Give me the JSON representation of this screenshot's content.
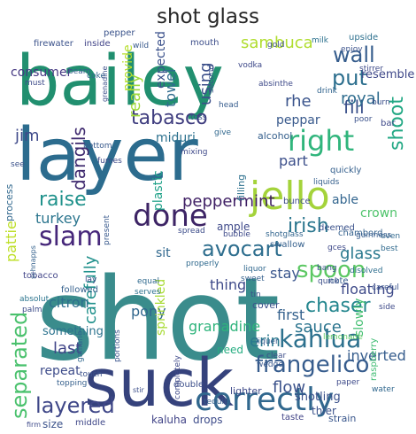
{
  "title": "shot glass",
  "words": [
    {
      "text": "shot",
      "color": "#3a8c8c"
    },
    {
      "text": "bailey",
      "color": "#218f6f"
    },
    {
      "text": "layer",
      "color": "#2c6c8e"
    },
    {
      "text": "suck",
      "color": "#35427c"
    },
    {
      "text": "jello",
      "color": "#a4d33b"
    },
    {
      "text": "done",
      "color": "#3d2465"
    },
    {
      "text": "correctly",
      "color": "#31688e"
    },
    {
      "text": "layered",
      "color": "#3f4788"
    },
    {
      "text": "frangelico",
      "color": "#365c8d"
    },
    {
      "text": "kahlua",
      "color": "#2d718e"
    },
    {
      "text": "right",
      "color": "#30b57c"
    },
    {
      "text": "tabasco",
      "color": "#3f3d7f"
    },
    {
      "text": "slam",
      "color": "#46277a"
    },
    {
      "text": "avocart",
      "color": "#2e6e8e"
    },
    {
      "text": "wall",
      "color": "#365d8d"
    },
    {
      "text": "put",
      "color": "#2d6f8e"
    },
    {
      "text": "separated",
      "color": "#4ac16d"
    },
    {
      "text": "spoon",
      "color": "#5cc863"
    },
    {
      "text": "irish",
      "color": "#2a768e"
    },
    {
      "text": "raise",
      "color": "#20928c"
    },
    {
      "text": "peppermint",
      "color": "#3f1f64"
    },
    {
      "text": "fill",
      "color": "#3b518b"
    },
    {
      "text": "chaser",
      "color": "#24868e"
    },
    {
      "text": "sauce",
      "color": "#2b748e"
    },
    {
      "text": "using",
      "color": "#3c4f8a"
    },
    {
      "text": "sambuca",
      "color": "#b0dd2f"
    },
    {
      "text": "shoot",
      "color": "#22a884"
    },
    {
      "text": "royal",
      "color": "#2e6c8e"
    },
    {
      "text": "rhe",
      "color": "#3a548c"
    },
    {
      "text": "turkey",
      "color": "#2b758e"
    },
    {
      "text": "pattie",
      "color": "#bddf26"
    },
    {
      "text": "really",
      "color": "#9fda3a"
    },
    {
      "text": "dangils",
      "color": "#3f2a6f"
    },
    {
      "text": "jim",
      "color": "#3e4989"
    },
    {
      "text": "consumer",
      "color": "#453882"
    },
    {
      "text": "towel",
      "color": "#2f6b8e"
    },
    {
      "text": "expected",
      "color": "#3b518b"
    },
    {
      "text": "provide",
      "color": "#b5de2b"
    },
    {
      "text": "granadine",
      "color": "#2fb47c"
    },
    {
      "text": "carefully",
      "color": "#21918c"
    },
    {
      "text": "erin",
      "color": "#2a788e"
    },
    {
      "text": "inverted",
      "color": "#365d8d"
    },
    {
      "text": "floating",
      "color": "#3e4a89"
    },
    {
      "text": "glass",
      "color": "#2a798e"
    },
    {
      "text": "flow",
      "color": "#3b528b"
    },
    {
      "text": "last",
      "color": "#404588"
    },
    {
      "text": "first",
      "color": "#34618d"
    },
    {
      "text": "repeat",
      "color": "#3e4c8a"
    },
    {
      "text": "stay",
      "color": "#39558c"
    },
    {
      "text": "thing",
      "color": "#3e4a89"
    },
    {
      "text": "citron",
      "color": "#2e6f8e"
    },
    {
      "text": "pony",
      "color": "#31678e"
    },
    {
      "text": "sprinkled",
      "color": "#a8db34"
    },
    {
      "text": "part",
      "color": "#3c4f8a"
    },
    {
      "text": "crown",
      "color": "#4ec36b"
    },
    {
      "text": "peppar",
      "color": "#38598c"
    },
    {
      "text": "miduri",
      "color": "#2c718e"
    },
    {
      "text": "plastic",
      "color": "#1fa188"
    },
    {
      "text": "sit",
      "color": "#31688e"
    },
    {
      "text": "able",
      "color": "#32658e"
    },
    {
      "text": "something",
      "color": "#2c738e"
    },
    {
      "text": "shotling",
      "color": "#3b518b"
    },
    {
      "text": "slowly",
      "color": "#43bf71"
    },
    {
      "text": "resemble",
      "color": "#3f4889"
    },
    {
      "text": "upside",
      "color": "#2d708e"
    },
    {
      "text": "pepper",
      "color": "#3a538b"
    },
    {
      "text": "firewater",
      "color": "#3b528b"
    },
    {
      "text": "inside",
      "color": "#404387"
    },
    {
      "text": "mouth",
      "color": "#3d4e8a"
    },
    {
      "text": "alcohol",
      "color": "#36608d"
    },
    {
      "text": "filling",
      "color": "#2d708e"
    },
    {
      "text": "cover",
      "color": "#3b528b"
    },
    {
      "text": "tobacco",
      "color": "#414487"
    },
    {
      "text": "followed",
      "color": "#34608d"
    },
    {
      "text": "absolut",
      "color": "#2b748e"
    },
    {
      "text": "palm",
      "color": "#3d4d8a"
    },
    {
      "text": "process",
      "color": "#31688e"
    },
    {
      "text": "ample",
      "color": "#3e4989"
    },
    {
      "text": "properly",
      "color": "#306a8e"
    },
    {
      "text": "swallow",
      "color": "#35608d"
    },
    {
      "text": "chambord",
      "color": "#34618d"
    },
    {
      "text": "deemed",
      "color": "#3b528b"
    },
    {
      "text": "note",
      "color": "#365c8d"
    },
    {
      "text": "gces",
      "color": "#3e4989"
    },
    {
      "text": "even",
      "color": "#31688e"
    },
    {
      "text": "best",
      "color": "#306a8e"
    },
    {
      "text": "quickly",
      "color": "#35608d"
    },
    {
      "text": "shotglass",
      "color": "#32658e"
    },
    {
      "text": "bang",
      "color": "#3b528b"
    },
    {
      "text": "quick",
      "color": "#3c4f8a"
    },
    {
      "text": "disolved",
      "color": "#2e6e8e"
    },
    {
      "text": "careful",
      "color": "#3a548c"
    },
    {
      "text": "side",
      "color": "#3e4a89"
    },
    {
      "text": "liquer",
      "color": "#365c8d"
    },
    {
      "text": "clear",
      "color": "#3d4e8a"
    },
    {
      "text": "wedge",
      "color": "#38588c"
    },
    {
      "text": "lemonade",
      "color": "#5ec962"
    },
    {
      "text": "raspberry",
      "color": "#3fbc73"
    },
    {
      "text": "water",
      "color": "#31688e"
    },
    {
      "text": "paper",
      "color": "#3e4a89"
    },
    {
      "text": "strain",
      "color": "#39568c"
    },
    {
      "text": "taste",
      "color": "#414487"
    },
    {
      "text": "thier",
      "color": "#3b528b"
    },
    {
      "text": "drops",
      "color": "#3e4c8a"
    },
    {
      "text": "kaluha",
      "color": "#414487"
    },
    {
      "text": "middle",
      "color": "#3f4788"
    },
    {
      "text": "size",
      "color": "#3b528b"
    },
    {
      "text": "firm",
      "color": "#3e4989"
    },
    {
      "text": "double",
      "color": "#3c4f8a"
    },
    {
      "text": "tequila",
      "color": "#35608d"
    },
    {
      "text": "lighter",
      "color": "#3e4a89"
    },
    {
      "text": "need",
      "color": "#26ad81"
    },
    {
      "text": "topping",
      "color": "#36608d"
    },
    {
      "text": "touch",
      "color": "#3b528b"
    },
    {
      "text": "galliano",
      "color": "#31688e"
    },
    {
      "text": "completely",
      "color": "#3e4989"
    },
    {
      "text": "portions",
      "color": "#3a548c"
    },
    {
      "text": "stir",
      "color": "#3c4f8a"
    },
    {
      "text": "serves",
      "color": "#2c718e"
    },
    {
      "text": "equal",
      "color": "#306a8e"
    },
    {
      "text": "lay",
      "color": "#3e4989"
    },
    {
      "text": "schnapps",
      "color": "#34618d"
    },
    {
      "text": "present",
      "color": "#38598c"
    },
    {
      "text": "spread",
      "color": "#3d4d8a"
    },
    {
      "text": "bubble",
      "color": "#3e4a89"
    },
    {
      "text": "sweet",
      "color": "#35608d"
    },
    {
      "text": "tin",
      "color": "#3b528b"
    },
    {
      "text": "liquor",
      "color": "#31688e"
    },
    {
      "text": "bunce",
      "color": "#3e4c8a"
    },
    {
      "text": "liquids",
      "color": "#36608d"
    },
    {
      "text": "poor",
      "color": "#3b528b"
    },
    {
      "text": "bar",
      "color": "#3e4989"
    },
    {
      "text": "burn",
      "color": "#3c4f8a"
    },
    {
      "text": "drink",
      "color": "#32658e"
    },
    {
      "text": "stirrer",
      "color": "#3e4a89"
    },
    {
      "text": "enjoy",
      "color": "#3b528b"
    },
    {
      "text": "guinness",
      "color": "#365c8d"
    },
    {
      "text": "mixing",
      "color": "#3e4989"
    },
    {
      "text": "toss",
      "color": "#3c4f8a"
    },
    {
      "text": "give",
      "color": "#31688e"
    },
    {
      "text": "bottom",
      "color": "#38598c"
    },
    {
      "text": "fumes",
      "color": "#3e4a89"
    },
    {
      "text": "see",
      "color": "#3b528b"
    },
    {
      "text": "must",
      "color": "#3e4c8a"
    },
    {
      "text": "beam",
      "color": "#35608d"
    },
    {
      "text": "coke",
      "color": "#31688e"
    },
    {
      "text": "grenadine",
      "color": "#3c4f8a"
    },
    {
      "text": "vodka",
      "color": "#3e4989"
    },
    {
      "text": "second",
      "color": "#3b528b"
    },
    {
      "text": "head",
      "color": "#365c8d"
    },
    {
      "text": "absinthe",
      "color": "#3e4a89"
    },
    {
      "text": "milk",
      "color": "#2c718e"
    },
    {
      "text": "gold",
      "color": "#3c4f8a"
    },
    {
      "text": "wild",
      "color": "#38598c"
    }
  ]
}
